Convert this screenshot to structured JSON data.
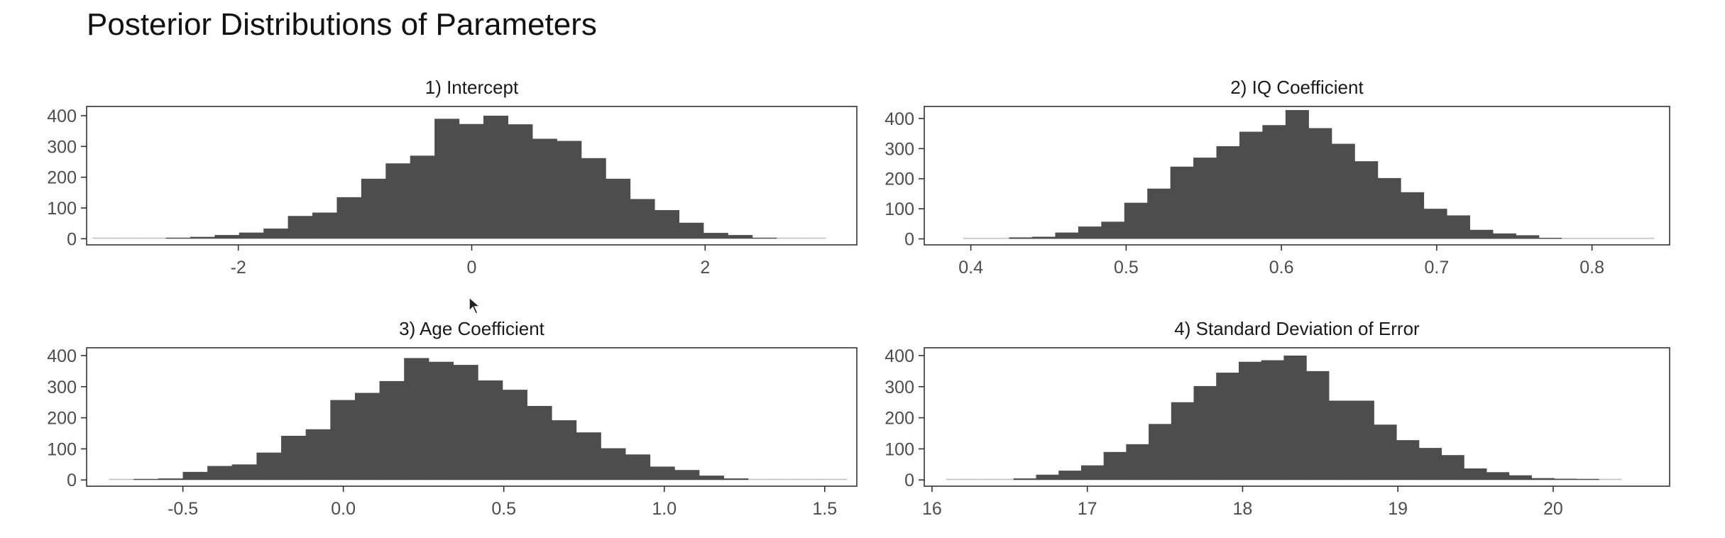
{
  "title": "Posterior Distributions of Parameters",
  "colors": {
    "bar": "#4d4d4d",
    "frame": "#333333",
    "text": "#1a1a1a",
    "tick_text": "#4d4d4d"
  },
  "chart_data": [
    {
      "type": "bar",
      "title": "1) Intercept",
      "xlim": [
        -3.3,
        3.3
      ],
      "ylim": [
        -20,
        430
      ],
      "x_ticks": [
        -2,
        0,
        2
      ],
      "x_tick_labels": [
        "-2",
        "0",
        "2"
      ],
      "y_ticks": [
        0,
        100,
        200,
        300,
        400
      ],
      "bin_start": -3.25,
      "bin_width": 0.2094,
      "values": [
        1,
        0,
        2,
        3,
        6,
        12,
        20,
        33,
        74,
        85,
        135,
        195,
        245,
        270,
        390,
        373,
        400,
        372,
        325,
        318,
        262,
        195,
        129,
        93,
        52,
        19,
        12,
        3,
        1,
        1
      ]
    },
    {
      "type": "bar",
      "title": "2) IQ Coefficient",
      "xlim": [
        0.37,
        0.85
      ],
      "ylim": [
        -20,
        440
      ],
      "x_ticks": [
        0.4,
        0.5,
        0.6,
        0.7,
        0.8
      ],
      "x_tick_labels": [
        "0.4",
        "0.5",
        "0.6",
        "0.7",
        "0.8"
      ],
      "y_ticks": [
        0,
        100,
        200,
        300,
        400
      ],
      "bin_start": 0.395,
      "bin_width": 0.01483,
      "values": [
        1,
        2,
        5,
        7,
        21,
        41,
        57,
        120,
        167,
        240,
        270,
        308,
        356,
        378,
        428,
        368,
        316,
        258,
        202,
        155,
        100,
        78,
        30,
        18,
        12,
        3,
        1,
        1,
        1,
        1
      ]
    },
    {
      "type": "bar",
      "title": "3) Age Coefficient",
      "xlim": [
        -0.8,
        1.6
      ],
      "ylim": [
        -20,
        425
      ],
      "x_ticks": [
        -0.5,
        0.0,
        0.5,
        1.0,
        1.5
      ],
      "x_tick_labels": [
        "-0.5",
        "0.0",
        "0.5",
        "1.0",
        "1.5"
      ],
      "y_ticks": [
        0,
        100,
        200,
        300,
        400
      ],
      "bin_start": -0.73,
      "bin_width": 0.0766,
      "values": [
        2,
        3,
        5,
        26,
        45,
        50,
        88,
        142,
        163,
        257,
        280,
        318,
        392,
        380,
        370,
        320,
        290,
        238,
        192,
        153,
        102,
        82,
        43,
        32,
        14,
        5,
        0,
        0,
        1,
        0
      ]
    },
    {
      "type": "bar",
      "title": "4) Standard Deviation of Error",
      "xlim": [
        15.95,
        20.75
      ],
      "ylim": [
        -20,
        425
      ],
      "x_ticks": [
        16,
        17,
        18,
        19,
        20
      ],
      "x_tick_labels": [
        "16",
        "17",
        "18",
        "19",
        "20"
      ],
      "y_ticks": [
        0,
        100,
        200,
        300,
        400
      ],
      "bin_start": 16.09,
      "bin_width": 0.145,
      "values": [
        1,
        0,
        0,
        5,
        17,
        30,
        47,
        90,
        115,
        180,
        250,
        302,
        345,
        380,
        385,
        400,
        350,
        255,
        255,
        178,
        128,
        103,
        80,
        37,
        25,
        15,
        6,
        4,
        3,
        2
      ]
    }
  ]
}
